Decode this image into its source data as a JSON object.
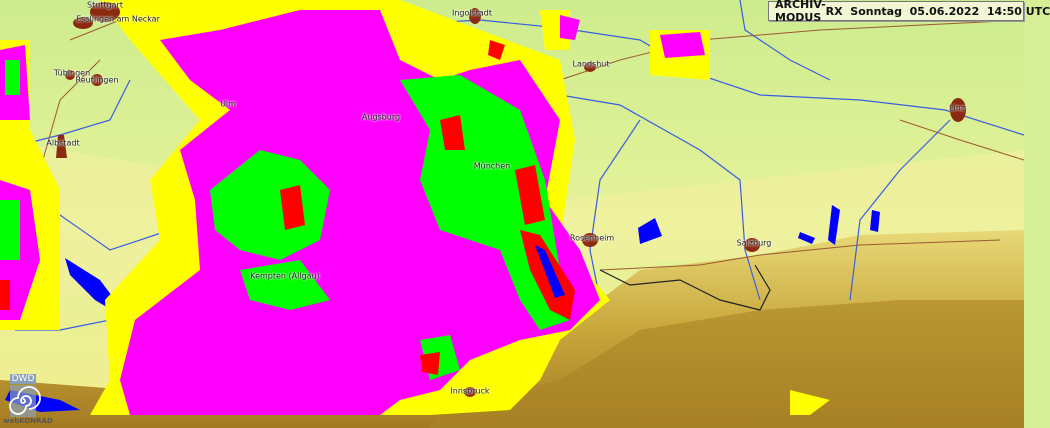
{
  "header": {
    "mode": "ARCHIV-MODUS",
    "product": "RX",
    "weekday": "Sonntag",
    "date": "05.06.2022",
    "time": "14:50 UTC"
  },
  "cities": [
    {
      "name": "Stuttgart"
    },
    {
      "name": "Esslingen am Neckar"
    },
    {
      "name": "Tübingen"
    },
    {
      "name": "Reutlingen"
    },
    {
      "name": "Ulm"
    },
    {
      "name": "Albstadt"
    },
    {
      "name": "Ingolstadt"
    },
    {
      "name": "Landshut"
    },
    {
      "name": "Augsburg"
    },
    {
      "name": "München"
    },
    {
      "name": "Kempten (Allgäu)"
    },
    {
      "name": "Rosenheim"
    },
    {
      "name": "Salzburg"
    },
    {
      "name": "Innsbruck"
    },
    {
      "name": "Linz"
    }
  ],
  "logo": {
    "top": "DWD",
    "bottom": "webKONRAD"
  },
  "colors": {
    "precip_light": "#ffff00",
    "precip_moderate": "#ff00ff",
    "precip_heavy": "#00ff00",
    "precip_very_heavy": "#ff0000",
    "precip_extreme": "#0000ff",
    "water": "#0000ff",
    "city": "#8b2a10"
  }
}
